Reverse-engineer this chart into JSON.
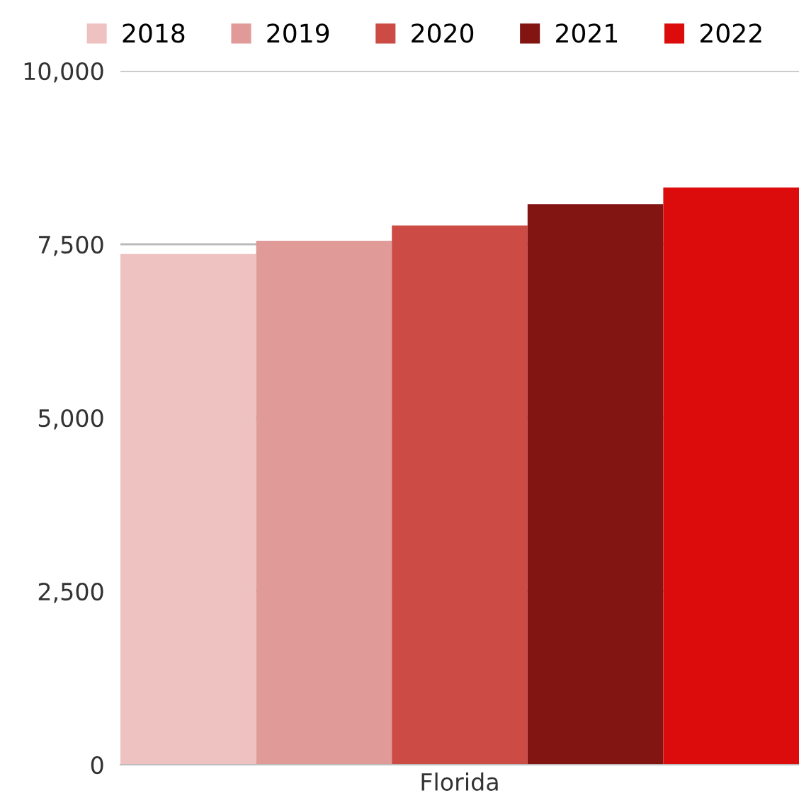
{
  "chart_data": {
    "type": "bar",
    "categories": [
      "Florida"
    ],
    "series": [
      {
        "name": "2018",
        "color": "#efc2c2",
        "values": [
          7360
        ]
      },
      {
        "name": "2019",
        "color": "#e09a98",
        "values": [
          7550
        ]
      },
      {
        "name": "2020",
        "color": "#cc4b44",
        "values": [
          7770
        ]
      },
      {
        "name": "2021",
        "color": "#821412",
        "values": [
          8080
        ]
      },
      {
        "name": "2022",
        "color": "#dc0c0c",
        "values": [
          8320
        ]
      }
    ],
    "ylim": [
      0,
      10000
    ],
    "yticks": [
      {
        "value": 0,
        "label": "0"
      },
      {
        "value": 2500,
        "label": "2,500"
      },
      {
        "value": 5000,
        "label": "5,000"
      },
      {
        "value": 7500,
        "label": "7,500"
      },
      {
        "value": 10000,
        "label": "10,000"
      }
    ],
    "grid": "y",
    "legend": "top"
  }
}
